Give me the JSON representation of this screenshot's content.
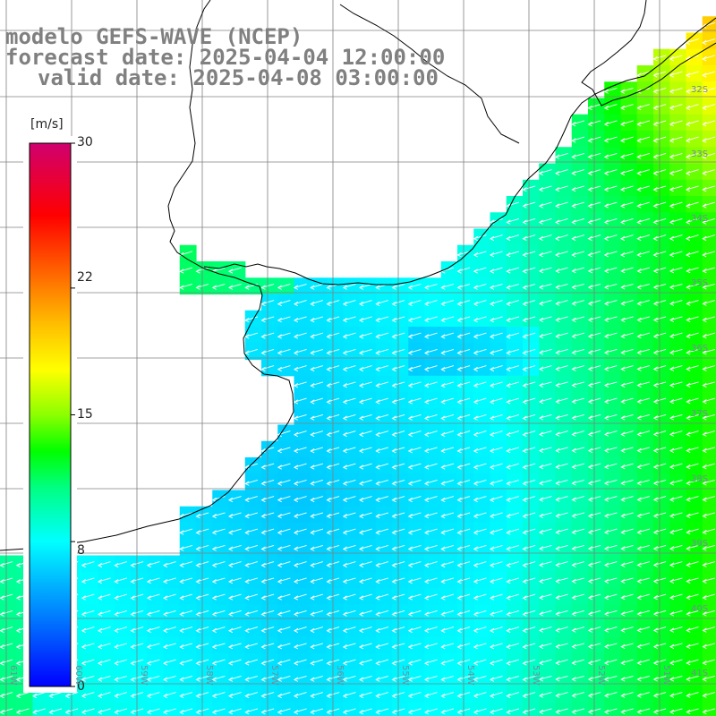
{
  "title": {
    "line1": "modelo GEFS-WAVE (NCEP)",
    "line2": "forecast date: 2025-04-04 12:00:00",
    "line3": "valid date: 2025-04-08 03:00:00"
  },
  "colorbar": {
    "unit": "[m/s]",
    "ticks": [
      "30",
      "22",
      "15",
      "8",
      "0"
    ],
    "tick_values": [
      30,
      22,
      15,
      8,
      0
    ],
    "min": 0,
    "max": 30,
    "colors": [
      "#0000ff",
      "#0080ff",
      "#00ffff",
      "#00ff00",
      "#80ff00",
      "#ffff00",
      "#ff8000",
      "#ff0000",
      "#d0006f"
    ]
  },
  "map": {
    "field": "wind speed",
    "vector_field": "wind direction arrows",
    "land_color": "#ffffff",
    "grid_color": "#808080",
    "coastline_color": "#000000",
    "lat_labels": [
      "32S",
      "33S",
      "34S",
      "35S",
      "36S",
      "37S",
      "38S",
      "39S",
      "40S",
      "41S"
    ],
    "lon_labels": [
      "61W",
      "60W",
      "59W",
      "58W",
      "57W",
      "56W",
      "55W",
      "54W",
      "53W",
      "52W",
      "51W"
    ]
  }
}
